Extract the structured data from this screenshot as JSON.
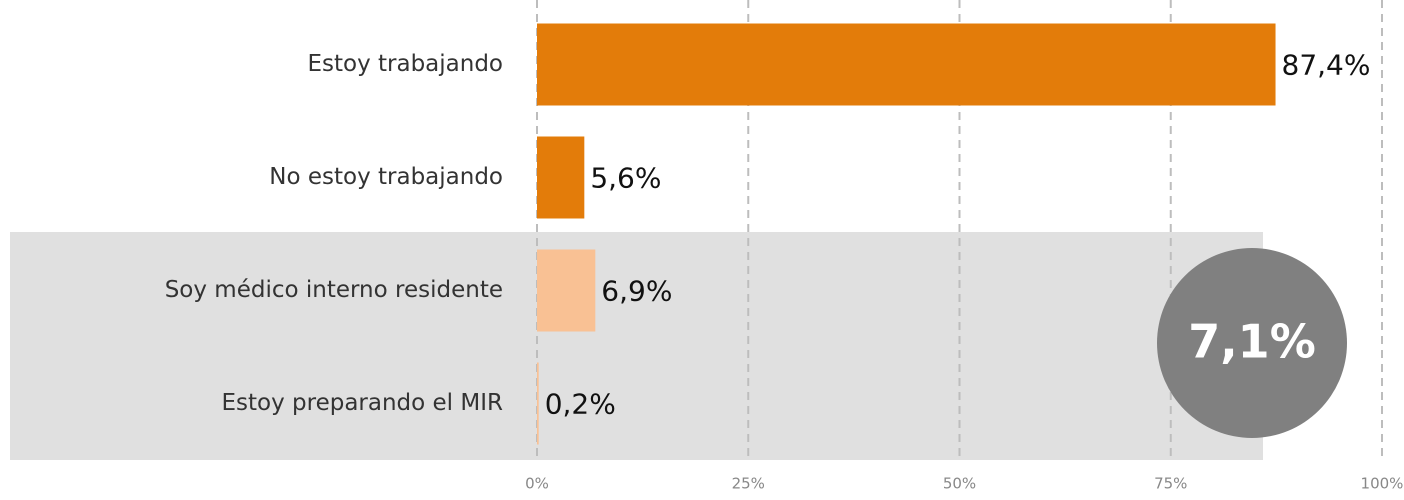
{
  "chart_data": {
    "type": "barh",
    "categories": [
      "Estoy trabajando",
      "No estoy trabajando",
      "Soy médico interno residente",
      "Estoy preparando el MIR"
    ],
    "values": [
      87.4,
      5.6,
      6.9,
      0.2
    ],
    "value_labels": [
      "87,4%",
      "5,6%",
      "6,9%",
      "0,2%"
    ],
    "colors": [
      "#e37c0a",
      "#e37c0a",
      "#f9c194",
      "#f9c194"
    ],
    "xlim": [
      0,
      100
    ],
    "xticks": [
      {
        "value": 0,
        "label": "0%"
      },
      {
        "value": 25,
        "label": "25%"
      },
      {
        "value": 50,
        "label": "50%"
      },
      {
        "value": 75,
        "label": "75%"
      },
      {
        "value": 100,
        "label": "100%"
      }
    ],
    "grid": true,
    "annotation": "7,1%"
  }
}
